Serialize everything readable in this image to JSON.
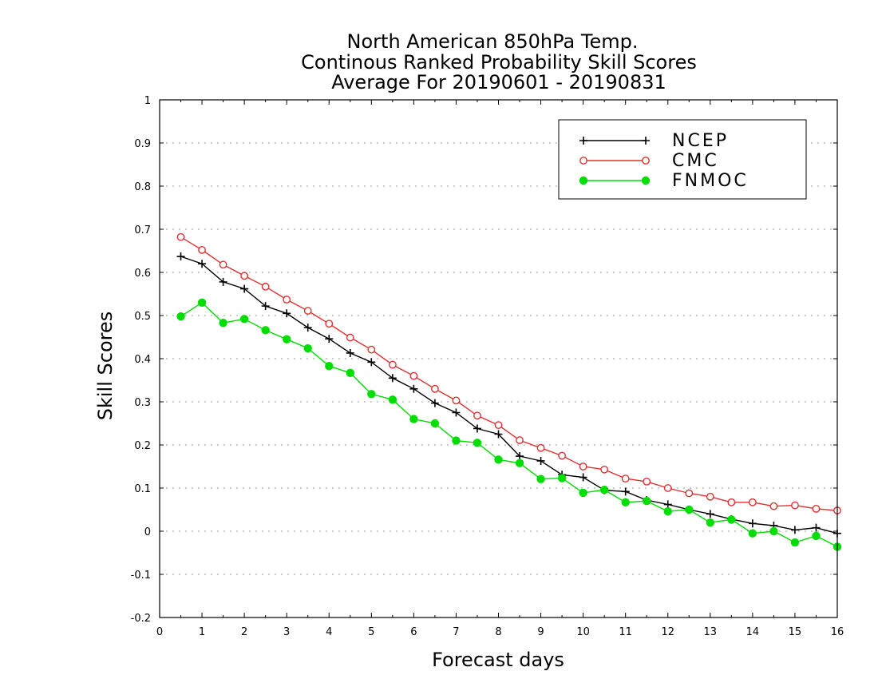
{
  "chart_data": {
    "type": "line",
    "title_lines": [
      "North American 850hPa Temp.",
      "Continous Ranked Probability Skill Scores",
      "Average For 20190601 - 20190831"
    ],
    "xlabel": "Forecast days",
    "ylabel": "Skill Scores",
    "xlim": [
      0,
      16
    ],
    "ylim": [
      -0.2,
      1
    ],
    "x_ticks": [
      0,
      1,
      2,
      3,
      4,
      5,
      6,
      7,
      8,
      9,
      10,
      11,
      12,
      13,
      14,
      15,
      16
    ],
    "y_ticks": [
      -0.2,
      -0.1,
      0,
      0.1,
      0.2,
      0.3,
      0.4,
      0.5,
      0.6,
      0.7,
      0.8,
      0.9,
      1
    ],
    "y_tick_labels": [
      "-0.2",
      "-0.1",
      "0",
      "0.1",
      "0.2",
      "0.3",
      "0.4",
      "0.5",
      "0.6",
      "0.7",
      "0.8",
      "0.9",
      "1"
    ],
    "grid": "horizontal dotted",
    "legend_position": "top-right",
    "x": [
      0.5,
      1,
      1.5,
      2,
      2.5,
      3,
      3.5,
      4,
      4.5,
      5,
      5.5,
      6,
      6.5,
      7,
      7.5,
      8,
      8.5,
      9,
      9.5,
      10,
      10.5,
      11,
      11.5,
      12,
      12.5,
      13,
      13.5,
      14,
      14.5,
      15,
      15.5,
      16
    ],
    "series": [
      {
        "name": "NCEP",
        "color": "#000000",
        "marker": "plus",
        "values": [
          0.637,
          0.62,
          0.578,
          0.562,
          0.522,
          0.505,
          0.472,
          0.446,
          0.413,
          0.392,
          0.355,
          0.33,
          0.297,
          0.275,
          0.238,
          0.225,
          0.174,
          0.163,
          0.131,
          0.125,
          0.095,
          0.092,
          0.072,
          0.062,
          0.05,
          0.04,
          0.028,
          0.018,
          0.013,
          0.003,
          0.008,
          -0.005
        ]
      },
      {
        "name": "CMC",
        "color": "#e03030",
        "marker": "open-circle",
        "values": [
          0.682,
          0.652,
          0.618,
          0.592,
          0.567,
          0.537,
          0.511,
          0.481,
          0.449,
          0.421,
          0.386,
          0.36,
          0.33,
          0.303,
          0.268,
          0.246,
          0.211,
          0.193,
          0.175,
          0.15,
          0.143,
          0.122,
          0.115,
          0.1,
          0.088,
          0.08,
          0.067,
          0.067,
          0.058,
          0.06,
          0.052,
          0.048
        ]
      },
      {
        "name": "FNMOC",
        "color": "#00dd00",
        "marker": "filled-circle",
        "values": [
          0.498,
          0.53,
          0.483,
          0.492,
          0.466,
          0.445,
          0.424,
          0.383,
          0.367,
          0.318,
          0.305,
          0.26,
          0.25,
          0.21,
          0.205,
          0.166,
          0.158,
          0.121,
          0.123,
          0.089,
          0.096,
          0.067,
          0.07,
          0.046,
          0.05,
          0.02,
          0.027,
          -0.005,
          0.0,
          -0.026,
          -0.011,
          -0.036
        ]
      }
    ]
  }
}
